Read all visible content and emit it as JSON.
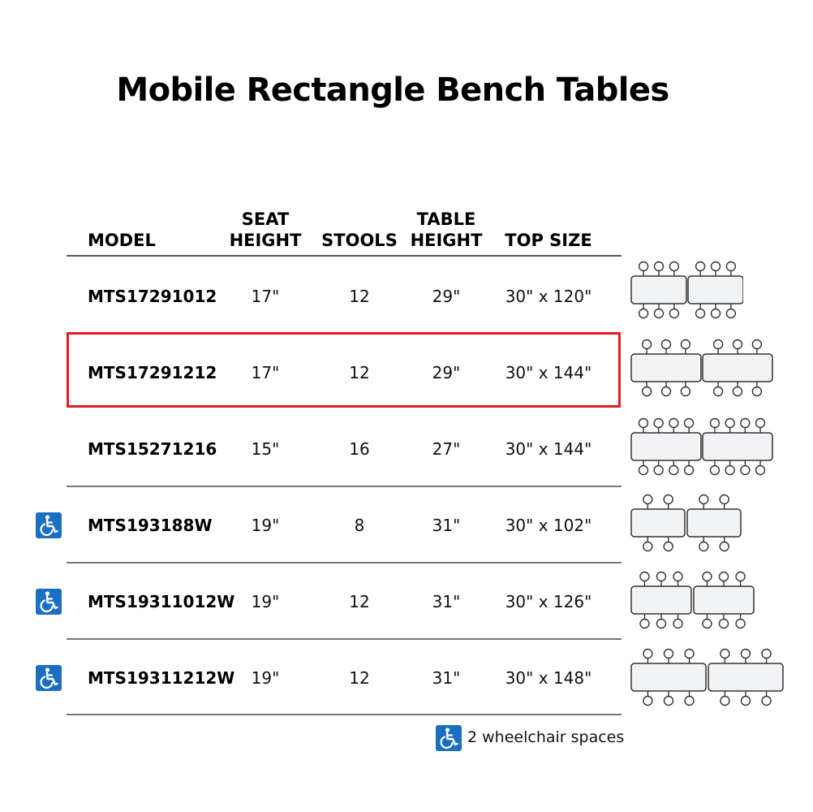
{
  "title": "Mobile Rectangle Bench Tables",
  "headers": {
    "model": "MODEL",
    "seat_height": [
      "SEAT",
      "HEIGHT"
    ],
    "stools": "STOOLS",
    "table_height": [
      "TABLE",
      "HEIGHT"
    ],
    "top_size": "TOP SIZE"
  },
  "rows": [
    {
      "model": "MTS17291012",
      "seat_height": "17\"",
      "stools": "12",
      "table_height": "29\"",
      "top_size": "30\" x 120\"",
      "wheelchair": false,
      "highlighted": false
    },
    {
      "model": "MTS17291212",
      "seat_height": "17\"",
      "stools": "12",
      "table_height": "29\"",
      "top_size": "30\" x 144\"",
      "wheelchair": false,
      "highlighted": true
    },
    {
      "model": "MTS15271216",
      "seat_height": "15\"",
      "stools": "16",
      "table_height": "27\"",
      "top_size": "30\" x 144\"",
      "wheelchair": false,
      "highlighted": false
    },
    {
      "model": "MTS193188W",
      "seat_height": "19\"",
      "stools": "8",
      "table_height": "31\"",
      "top_size": "30\" x 102\"",
      "wheelchair": true,
      "highlighted": false
    },
    {
      "model": "MTS19311012W",
      "seat_height": "19\"",
      "stools": "12",
      "table_height": "31\"",
      "top_size": "30\" x 126\"",
      "wheelchair": true,
      "highlighted": false
    },
    {
      "model": "MTS19311212W",
      "seat_height": "19\"",
      "stools": "12",
      "table_height": "31\"",
      "top_size": "30\" x 148\"",
      "wheelchair": true,
      "highlighted": false
    }
  ],
  "legend": {
    "text": "2 wheelchair spaces",
    "icon": "wheelchair-icon"
  },
  "colors": {
    "highlight": "#e31b23",
    "accessibility_blue": "#1a6fc2"
  }
}
